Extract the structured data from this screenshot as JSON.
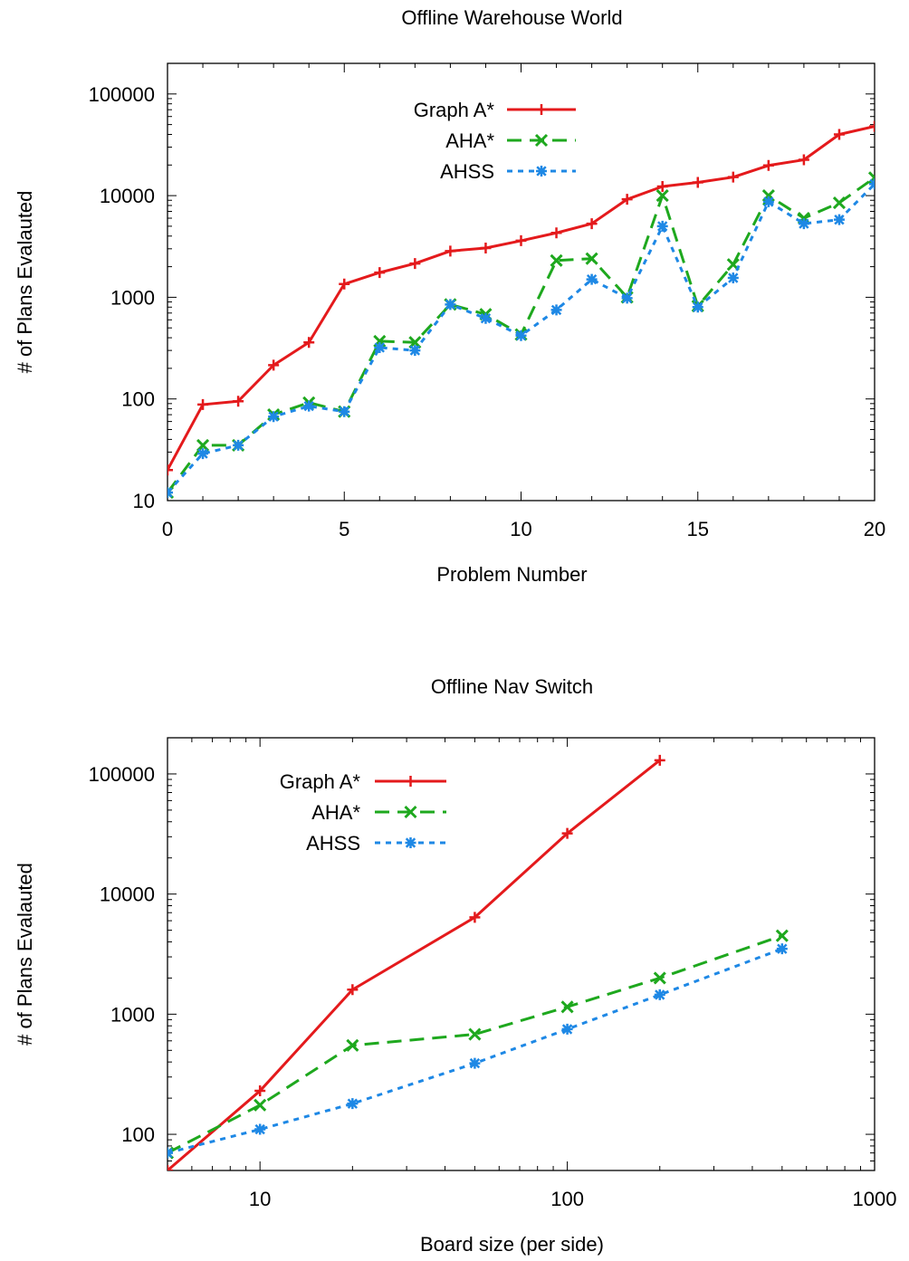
{
  "chart_data": [
    {
      "type": "line",
      "title": "Offline Warehouse World",
      "xlabel": "Problem Number",
      "ylabel": "# of Plans Evalauted",
      "xscale": "linear",
      "yscale": "log",
      "xlim": [
        0,
        20
      ],
      "ylim": [
        10,
        200000
      ],
      "xticks": [
        0,
        5,
        10,
        15,
        20
      ],
      "xtick_labels": [
        "0",
        "5",
        "10",
        "15",
        "20"
      ],
      "yticks": [
        10,
        100,
        1000,
        10000,
        100000
      ],
      "ytick_labels": [
        "10",
        "100",
        "1000",
        "10000",
        "100000"
      ],
      "grid": false,
      "legend_position": "top-center",
      "series": [
        {
          "name": "Graph A*",
          "color": "#e41a1c",
          "dash": "solid",
          "marker": "plus",
          "x": [
            0,
            1,
            2,
            3,
            4,
            5,
            6,
            7,
            8,
            9,
            10,
            11,
            12,
            13,
            14,
            15,
            16,
            17,
            18,
            19,
            20
          ],
          "y": [
            20,
            88,
            95,
            215,
            360,
            1350,
            1750,
            2150,
            2850,
            3050,
            3600,
            4300,
            5300,
            9200,
            12300,
            13500,
            15200,
            19800,
            22500,
            40000,
            48000
          ]
        },
        {
          "name": "AHA*",
          "color": "#1ea81e",
          "dash": "long",
          "marker": "x",
          "x": [
            0,
            1,
            2,
            3,
            4,
            5,
            6,
            7,
            8,
            9,
            10,
            11,
            12,
            13,
            14,
            15,
            16,
            17,
            18,
            19,
            20
          ],
          "y": [
            12,
            35,
            35,
            70,
            92,
            75,
            370,
            360,
            850,
            680,
            430,
            2300,
            2400,
            1000,
            10000,
            820,
            2100,
            10000,
            6000,
            8500,
            15000
          ]
        },
        {
          "name": "AHSS",
          "color": "#1e88e5",
          "dash": "short",
          "marker": "star",
          "x": [
            0,
            1,
            2,
            3,
            4,
            5,
            6,
            7,
            8,
            9,
            10,
            11,
            12,
            13,
            14,
            15,
            16,
            17,
            18,
            19,
            20
          ],
          "y": [
            12,
            29,
            35,
            67,
            85,
            75,
            320,
            300,
            850,
            620,
            420,
            750,
            1500,
            980,
            5000,
            800,
            1550,
            8700,
            5300,
            5800,
            13000
          ]
        }
      ]
    },
    {
      "type": "line",
      "title": "Offline Nav Switch",
      "xlabel": "Board size (per side)",
      "ylabel": "# of Plans Evalauted",
      "xscale": "log",
      "yscale": "log",
      "xlim": [
        5,
        1000
      ],
      "ylim": [
        50,
        200000
      ],
      "xticks": [
        10,
        100,
        1000
      ],
      "xtick_labels": [
        "10",
        "100",
        "1000"
      ],
      "yticks": [
        100,
        1000,
        10000,
        100000
      ],
      "ytick_labels": [
        "100",
        "1000",
        "10000",
        "100000"
      ],
      "grid": false,
      "legend_position": "top-left",
      "series": [
        {
          "name": "Graph A*",
          "color": "#e41a1c",
          "dash": "solid",
          "marker": "plus",
          "x": [
            5,
            10,
            20,
            50,
            100,
            200
          ],
          "y": [
            50,
            230,
            1600,
            6400,
            32000,
            130000
          ]
        },
        {
          "name": "AHA*",
          "color": "#1ea81e",
          "dash": "long",
          "marker": "x",
          "x": [
            5,
            10,
            20,
            50,
            100,
            200,
            500
          ],
          "y": [
            70,
            175,
            550,
            680,
            1150,
            2000,
            4500
          ]
        },
        {
          "name": "AHSS",
          "color": "#1e88e5",
          "dash": "short",
          "marker": "star",
          "x": [
            5,
            10,
            20,
            50,
            100,
            200,
            500
          ],
          "y": [
            70,
            110,
            180,
            390,
            750,
            1450,
            3500
          ]
        }
      ]
    }
  ]
}
